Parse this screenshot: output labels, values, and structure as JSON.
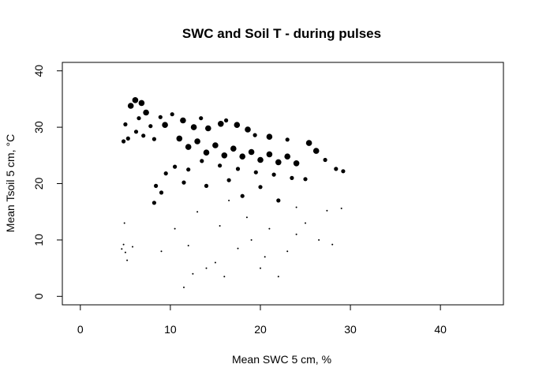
{
  "chart_data": {
    "type": "scatter",
    "title": "SWC and Soil T - during pulses",
    "xlabel": "Mean SWC 5 cm, %",
    "ylabel": "Mean Tsoil 5 cm, °C",
    "xlim": [
      -2,
      47
    ],
    "ylim": [
      -1.5,
      41.5
    ],
    "xticks": [
      0,
      10,
      20,
      30,
      40
    ],
    "yticks": [
      0,
      10,
      20,
      30,
      40
    ],
    "grid": false,
    "legend": "none",
    "color": "#000000",
    "points": [
      {
        "x": 5.0,
        "y": 30.5,
        "s": 2
      },
      {
        "x": 5.6,
        "y": 33.8,
        "s": 3
      },
      {
        "x": 6.1,
        "y": 34.8,
        "s": 3
      },
      {
        "x": 6.8,
        "y": 34.3,
        "s": 3
      },
      {
        "x": 5.3,
        "y": 28.0,
        "s": 2
      },
      {
        "x": 4.8,
        "y": 27.5,
        "s": 2
      },
      {
        "x": 6.5,
        "y": 31.6,
        "s": 2
      },
      {
        "x": 7.3,
        "y": 32.6,
        "s": 3
      },
      {
        "x": 7.8,
        "y": 30.2,
        "s": 2
      },
      {
        "x": 6.2,
        "y": 29.2,
        "s": 2
      },
      {
        "x": 7.0,
        "y": 28.5,
        "s": 2
      },
      {
        "x": 8.2,
        "y": 27.9,
        "s": 2
      },
      {
        "x": 8.9,
        "y": 31.8,
        "s": 2
      },
      {
        "x": 9.4,
        "y": 30.4,
        "s": 3
      },
      {
        "x": 10.2,
        "y": 32.3,
        "s": 2
      },
      {
        "x": 11.4,
        "y": 31.2,
        "s": 3
      },
      {
        "x": 12.6,
        "y": 30.0,
        "s": 3
      },
      {
        "x": 13.4,
        "y": 31.6,
        "s": 2
      },
      {
        "x": 14.2,
        "y": 29.8,
        "s": 3
      },
      {
        "x": 15.6,
        "y": 30.6,
        "s": 3
      },
      {
        "x": 16.2,
        "y": 31.2,
        "s": 2
      },
      {
        "x": 17.4,
        "y": 30.4,
        "s": 3
      },
      {
        "x": 18.6,
        "y": 29.6,
        "s": 3
      },
      {
        "x": 19.4,
        "y": 28.6,
        "s": 2
      },
      {
        "x": 21.0,
        "y": 28.3,
        "s": 3
      },
      {
        "x": 23.0,
        "y": 27.8,
        "s": 2
      },
      {
        "x": 25.4,
        "y": 27.2,
        "s": 3
      },
      {
        "x": 26.2,
        "y": 25.8,
        "s": 3
      },
      {
        "x": 27.2,
        "y": 24.2,
        "s": 2
      },
      {
        "x": 28.4,
        "y": 22.6,
        "s": 2
      },
      {
        "x": 29.2,
        "y": 22.2,
        "s": 2
      },
      {
        "x": 29.0,
        "y": 15.6,
        "s": 1
      },
      {
        "x": 27.4,
        "y": 15.2,
        "s": 1
      },
      {
        "x": 11.0,
        "y": 28.0,
        "s": 3
      },
      {
        "x": 12.0,
        "y": 26.5,
        "s": 3
      },
      {
        "x": 13.0,
        "y": 27.5,
        "s": 3
      },
      {
        "x": 14.0,
        "y": 25.5,
        "s": 3
      },
      {
        "x": 15.0,
        "y": 26.8,
        "s": 3
      },
      {
        "x": 16.0,
        "y": 25.0,
        "s": 3
      },
      {
        "x": 17.0,
        "y": 26.2,
        "s": 3
      },
      {
        "x": 18.0,
        "y": 24.8,
        "s": 3
      },
      {
        "x": 19.0,
        "y": 25.6,
        "s": 3
      },
      {
        "x": 20.0,
        "y": 24.2,
        "s": 3
      },
      {
        "x": 21.0,
        "y": 25.2,
        "s": 3
      },
      {
        "x": 22.0,
        "y": 23.8,
        "s": 3
      },
      {
        "x": 23.0,
        "y": 24.8,
        "s": 3
      },
      {
        "x": 24.0,
        "y": 23.6,
        "s": 3
      },
      {
        "x": 13.5,
        "y": 24.0,
        "s": 2
      },
      {
        "x": 15.5,
        "y": 23.2,
        "s": 2
      },
      {
        "x": 17.5,
        "y": 22.6,
        "s": 2
      },
      {
        "x": 19.5,
        "y": 22.0,
        "s": 2
      },
      {
        "x": 12.0,
        "y": 22.5,
        "s": 2
      },
      {
        "x": 10.5,
        "y": 23.0,
        "s": 2
      },
      {
        "x": 9.5,
        "y": 21.8,
        "s": 2
      },
      {
        "x": 16.5,
        "y": 20.6,
        "s": 2
      },
      {
        "x": 21.5,
        "y": 21.6,
        "s": 2
      },
      {
        "x": 23.5,
        "y": 21.0,
        "s": 2
      },
      {
        "x": 25.0,
        "y": 20.8,
        "s": 2
      },
      {
        "x": 20.0,
        "y": 19.4,
        "s": 2
      },
      {
        "x": 14.0,
        "y": 19.6,
        "s": 2
      },
      {
        "x": 11.5,
        "y": 20.2,
        "s": 2
      },
      {
        "x": 8.4,
        "y": 19.6,
        "s": 2
      },
      {
        "x": 9.0,
        "y": 18.4,
        "s": 2
      },
      {
        "x": 8.2,
        "y": 16.6,
        "s": 2
      },
      {
        "x": 22.0,
        "y": 17.0,
        "s": 2
      },
      {
        "x": 24.0,
        "y": 15.8,
        "s": 1
      },
      {
        "x": 18.0,
        "y": 17.8,
        "s": 2
      },
      {
        "x": 4.8,
        "y": 9.2,
        "s": 1
      },
      {
        "x": 5.0,
        "y": 7.8,
        "s": 1
      },
      {
        "x": 4.6,
        "y": 8.4,
        "s": 1
      },
      {
        "x": 5.2,
        "y": 6.4,
        "s": 1
      },
      {
        "x": 4.9,
        "y": 13.0,
        "s": 1
      },
      {
        "x": 5.8,
        "y": 8.8,
        "s": 1
      },
      {
        "x": 11.5,
        "y": 1.6,
        "s": 1
      },
      {
        "x": 12.5,
        "y": 4.0,
        "s": 1
      },
      {
        "x": 14.0,
        "y": 5.0,
        "s": 1
      },
      {
        "x": 15.0,
        "y": 6.0,
        "s": 1
      },
      {
        "x": 16.0,
        "y": 3.5,
        "s": 1
      },
      {
        "x": 17.5,
        "y": 8.5,
        "s": 1
      },
      {
        "x": 19.0,
        "y": 10.0,
        "s": 1
      },
      {
        "x": 20.5,
        "y": 7.0,
        "s": 1
      },
      {
        "x": 22.0,
        "y": 3.5,
        "s": 1
      },
      {
        "x": 23.0,
        "y": 8.0,
        "s": 1
      },
      {
        "x": 25.0,
        "y": 13.0,
        "s": 1
      },
      {
        "x": 26.5,
        "y": 10.0,
        "s": 1
      },
      {
        "x": 28.0,
        "y": 9.2,
        "s": 1
      },
      {
        "x": 13.0,
        "y": 15.0,
        "s": 1
      },
      {
        "x": 15.5,
        "y": 12.5,
        "s": 1
      },
      {
        "x": 18.5,
        "y": 14.0,
        "s": 1
      },
      {
        "x": 10.5,
        "y": 12.0,
        "s": 1
      },
      {
        "x": 9.0,
        "y": 8.0,
        "s": 1
      },
      {
        "x": 12.0,
        "y": 9.0,
        "s": 1
      },
      {
        "x": 21.0,
        "y": 12.0,
        "s": 1
      },
      {
        "x": 24.0,
        "y": 11.0,
        "s": 1
      },
      {
        "x": 16.5,
        "y": 17.0,
        "s": 1
      },
      {
        "x": 20.0,
        "y": 5.0,
        "s": 1
      }
    ]
  }
}
